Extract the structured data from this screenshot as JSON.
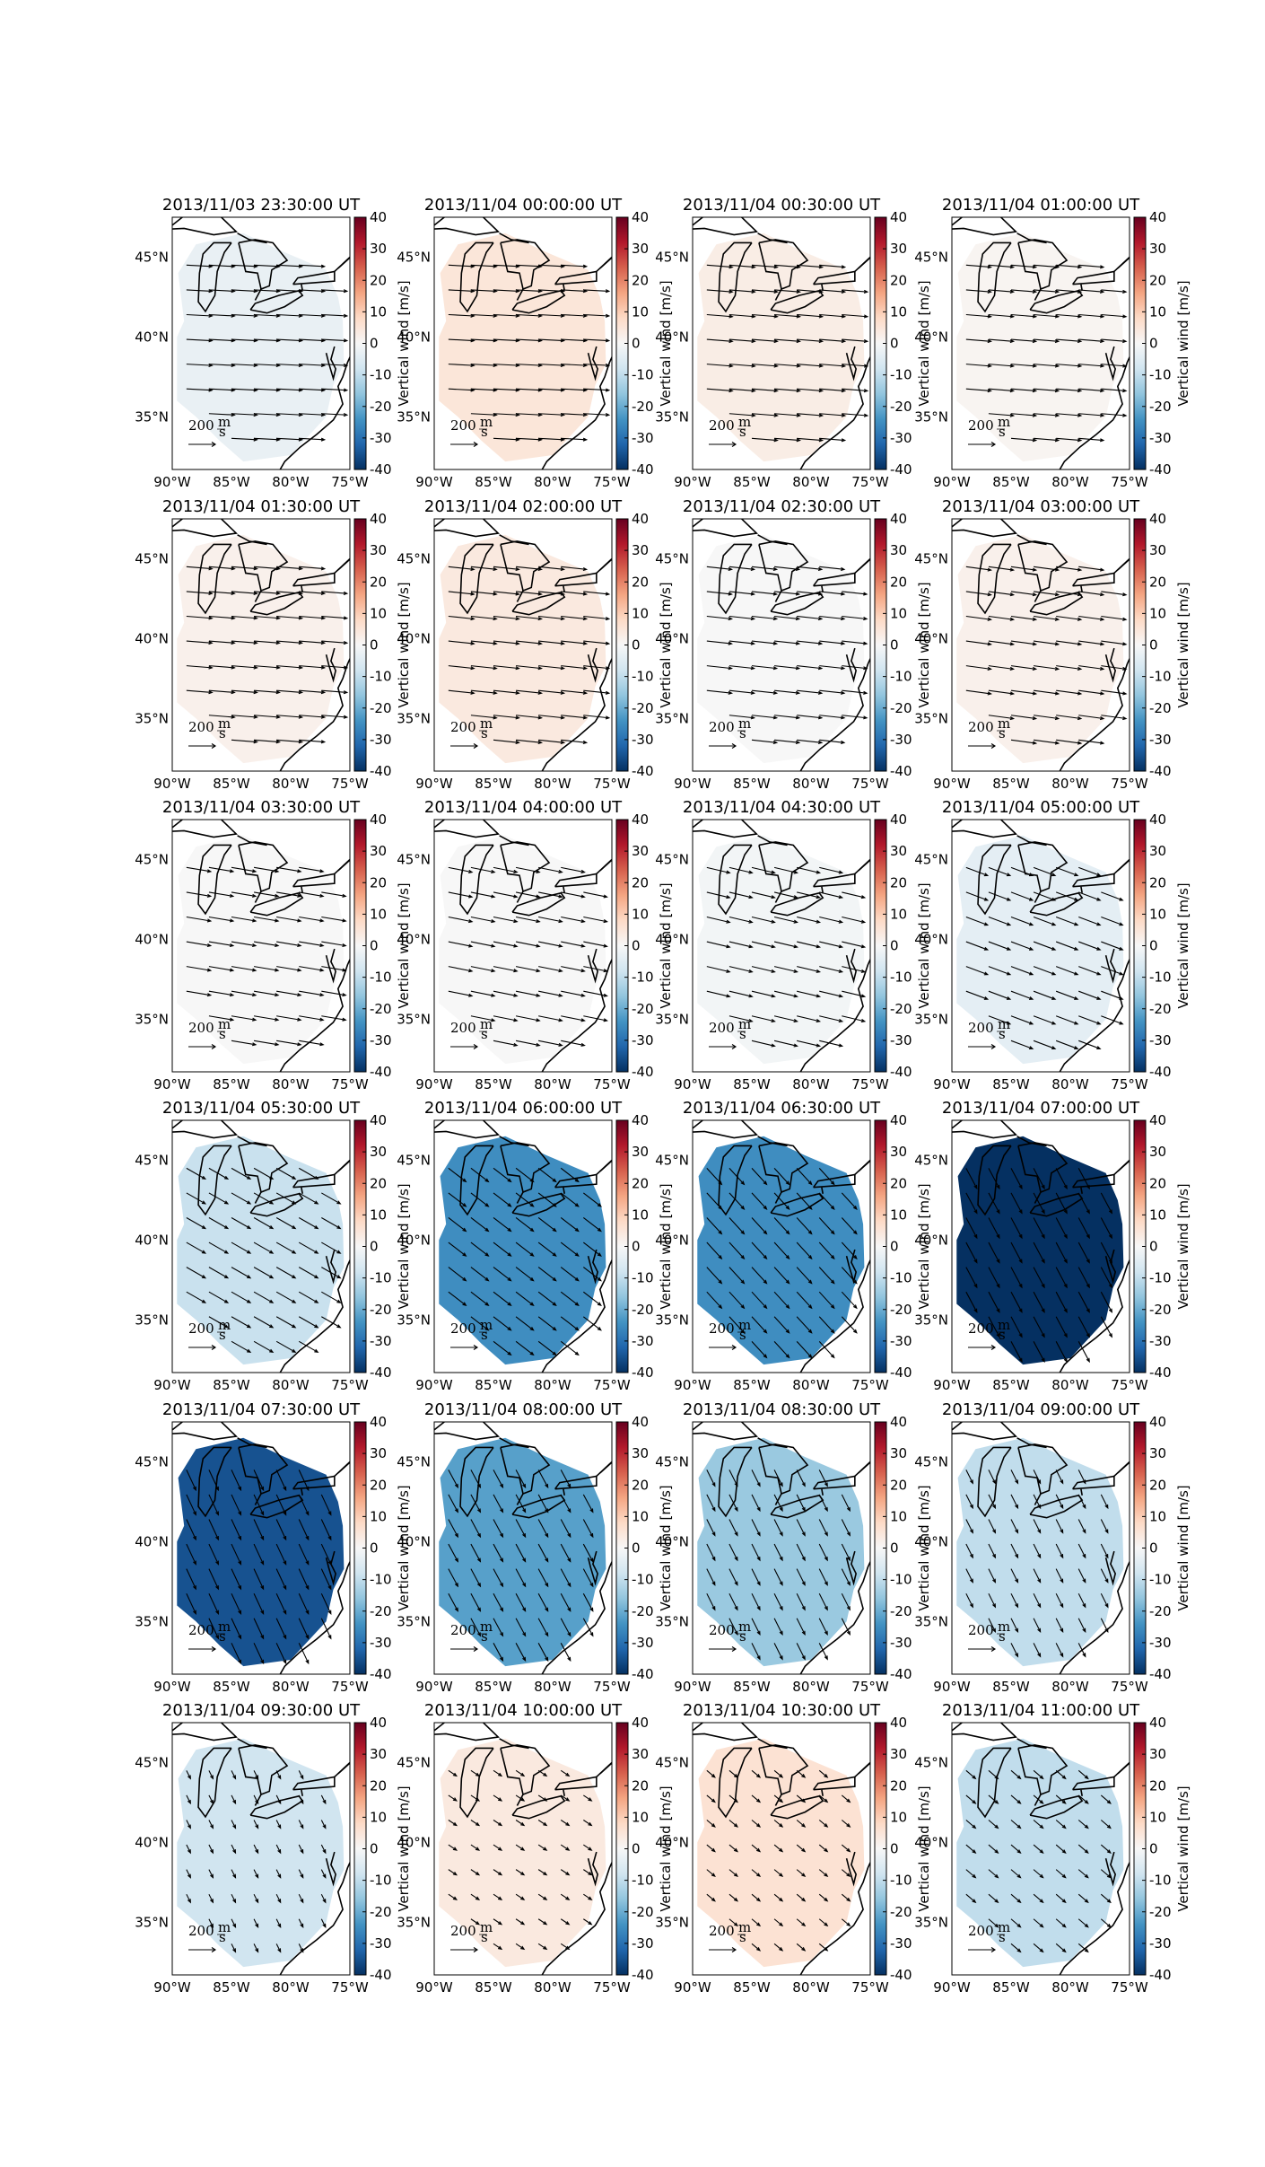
{
  "figure": {
    "lonlim": [
      -90,
      -75
    ],
    "latlim": [
      31.7,
      47.5
    ],
    "lon_ticks": [
      {
        "value": -90,
        "label": "90°W"
      },
      {
        "value": -85,
        "label": "85°W"
      },
      {
        "value": -80,
        "label": "80°W"
      },
      {
        "value": -75,
        "label": "75°W"
      }
    ],
    "lat_ticks": [
      {
        "value": 35,
        "label": "35°N"
      },
      {
        "value": 40,
        "label": "40°N"
      },
      {
        "value": 45,
        "label": "45°N"
      }
    ],
    "colorbar": {
      "label": "Vertical wind [m/s]",
      "lim": [
        -40,
        40
      ],
      "ticks": [
        -40,
        -30,
        -20,
        -10,
        0,
        10,
        20,
        30,
        40
      ],
      "colormap": [
        "#053061",
        "#2166ac",
        "#4393c3",
        "#92c5de",
        "#d1e5f0",
        "#f7f7f7",
        "#fddbc7",
        "#f4a582",
        "#d6604d",
        "#b2182b",
        "#67001f"
      ]
    },
    "reference_arrow": {
      "value": 200,
      "unit_top": "m",
      "unit_bottom": "s"
    },
    "panels": [
      {
        "title": "2013/11/03 23:30:00 UT",
        "vertical_wind": -3,
        "u": 190,
        "v": -10
      },
      {
        "title": "2013/11/04 00:00:00 UT",
        "vertical_wind": 5,
        "u": 190,
        "v": -10
      },
      {
        "title": "2013/11/04 00:30:00 UT",
        "vertical_wind": 3,
        "u": 190,
        "v": -15
      },
      {
        "title": "2013/11/04 01:00:00 UT",
        "vertical_wind": 1,
        "u": 185,
        "v": -15
      },
      {
        "title": "2013/11/04 01:30:00 UT",
        "vertical_wind": 2,
        "u": 190,
        "v": -15
      },
      {
        "title": "2013/11/04 02:00:00 UT",
        "vertical_wind": 4,
        "u": 190,
        "v": -20
      },
      {
        "title": "2013/11/04 02:30:00 UT",
        "vertical_wind": 0,
        "u": 185,
        "v": -20
      },
      {
        "title": "2013/11/04 03:00:00 UT",
        "vertical_wind": 2,
        "u": 185,
        "v": -25
      },
      {
        "title": "2013/11/04 03:30:00 UT",
        "vertical_wind": 0,
        "u": 180,
        "v": -30
      },
      {
        "title": "2013/11/04 04:00:00 UT",
        "vertical_wind": 0,
        "u": 175,
        "v": -35
      },
      {
        "title": "2013/11/04 04:30:00 UT",
        "vertical_wind": -1,
        "u": 170,
        "v": -40
      },
      {
        "title": "2013/11/04 05:00:00 UT",
        "vertical_wind": -4,
        "u": 160,
        "v": -60
      },
      {
        "title": "2013/11/04 05:30:00 UT",
        "vertical_wind": -9,
        "u": 140,
        "v": -80
      },
      {
        "title": "2013/11/04 06:00:00 UT",
        "vertical_wind": -25,
        "u": 130,
        "v": -100
      },
      {
        "title": "2013/11/04 06:30:00 UT",
        "vertical_wind": -25,
        "u": 110,
        "v": -120
      },
      {
        "title": "2013/11/04 07:00:00 UT",
        "vertical_wind": -40,
        "u": 80,
        "v": -150
      },
      {
        "title": "2013/11/04 07:30:00 UT",
        "vertical_wind": -35,
        "u": 70,
        "v": -150
      },
      {
        "title": "2013/11/04 08:00:00 UT",
        "vertical_wind": -22,
        "u": 70,
        "v": -130
      },
      {
        "title": "2013/11/04 08:30:00 UT",
        "vertical_wind": -15,
        "u": 60,
        "v": -120
      },
      {
        "title": "2013/11/04 09:00:00 UT",
        "vertical_wind": -10,
        "u": 50,
        "v": -100
      },
      {
        "title": "2013/11/04 09:30:00 UT",
        "vertical_wind": -8,
        "u": 30,
        "v": -60
      },
      {
        "title": "2013/11/04 10:00:00 UT",
        "vertical_wind": 4,
        "u": 60,
        "v": -40
      },
      {
        "title": "2013/11/04 10:30:00 UT",
        "vertical_wind": 6,
        "u": 60,
        "v": -50
      },
      {
        "title": "2013/11/04 11:00:00 UT",
        "vertical_wind": -10,
        "u": 70,
        "v": -60
      }
    ]
  }
}
